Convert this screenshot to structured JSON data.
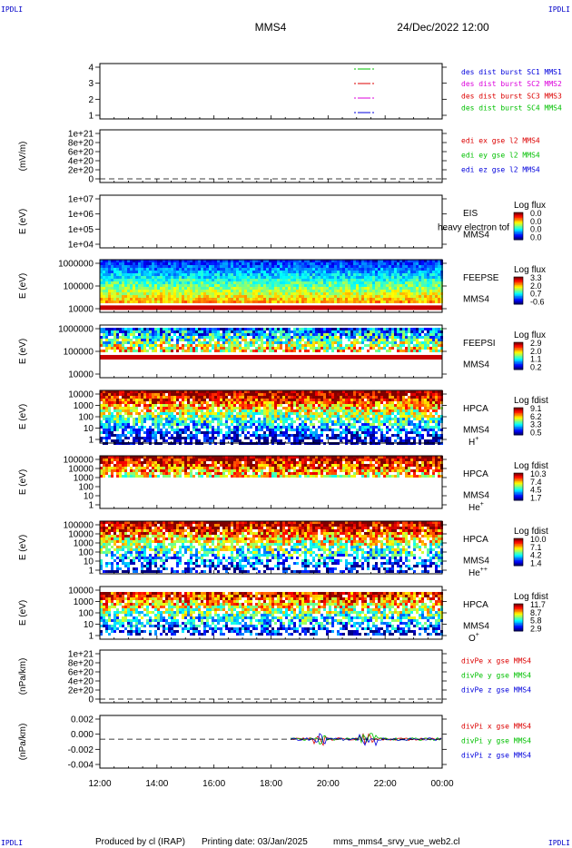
{
  "header": {
    "corner_label": "IPDLI",
    "spacecraft": "MMS4",
    "datetime": "24/Dec/2022 12:00"
  },
  "footer": {
    "produced_by": "Produced by cl (IRAP)",
    "printing_date": "Printing date: 03/Jan/2025",
    "script_name": "mms_mms4_srvy_vue_web2.cl"
  },
  "colors": {
    "blue": "#0000dc",
    "green": "#00c000",
    "red": "#dc0000",
    "magenta": "#dc00dc"
  },
  "chart_data": {
    "type": "heatmap",
    "x_ticks": [
      "12:00",
      "14:00",
      "16:00",
      "18:00",
      "20:00",
      "22:00",
      "00:00"
    ],
    "panels": [
      {
        "id": "burst",
        "kind": "lines",
        "ylabel": "",
        "yticks": [
          "4",
          "3",
          "2",
          "1"
        ],
        "legend": [
          {
            "text": "des dist burst SC1 MMS1",
            "color": "#0000dc"
          },
          {
            "text": "des dist burst SC2 MMS2",
            "color": "#dc00dc"
          },
          {
            "text": "des dist burst SC3 MMS3",
            "color": "#dc0000"
          },
          {
            "text": "des dist burst SC4 MMS4",
            "color": "#00c000"
          }
        ]
      },
      {
        "id": "edi",
        "kind": "lines",
        "ylabel": "(mV/m)",
        "yticks": [
          "1e+21",
          "8e+20",
          "6e+20",
          "4e+20",
          "2e+20",
          "0"
        ],
        "legend": [
          {
            "text": "edi ex gse l2 MMS4",
            "color": "#dc0000"
          },
          {
            "text": "edi ey gse l2 MMS4",
            "color": "#00c000"
          },
          {
            "text": "edi ez gse l2 MMS4",
            "color": "#0000dc"
          }
        ]
      },
      {
        "id": "eis",
        "kind": "spectro",
        "ylabel": "E (eV)",
        "yticks": [
          "1e+07",
          "1e+06",
          "1e+05",
          "1e+04"
        ],
        "side": [
          "EIS",
          "MMS4"
        ],
        "extra": "heavy electron tof",
        "cb_title": "Log flux",
        "cb_ticks": [
          "0.0",
          "0.0",
          "0.0",
          "0.0"
        ]
      },
      {
        "id": "feepse",
        "kind": "spectro",
        "ylabel": "E (eV)",
        "yticks": [
          "1000000",
          "100000",
          "10000"
        ],
        "side": [
          "FEEPSE",
          "MMS4"
        ],
        "cb_title": "Log flux",
        "cb_ticks": [
          "3.3",
          "2.0",
          "0.7",
          "-0.6"
        ]
      },
      {
        "id": "feepsi",
        "kind": "spectro",
        "ylabel": "E (eV)",
        "yticks": [
          "1000000",
          "100000",
          "10000"
        ],
        "side": [
          "FEEPSI",
          "MMS4"
        ],
        "cb_title": "Log flux",
        "cb_ticks": [
          "2.9",
          "2.0",
          "1.1",
          "0.2"
        ]
      },
      {
        "id": "hpca_h",
        "kind": "spectro",
        "ylabel": "E (eV)",
        "yticks": [
          "10000",
          "1000",
          "100",
          "10",
          "1"
        ],
        "side": [
          "HPCA",
          "MMS4",
          "H+"
        ],
        "cb_title": "Log fdist",
        "cb_ticks": [
          "9.1",
          "6.2",
          "3.3",
          "0.5"
        ]
      },
      {
        "id": "hpca_he",
        "kind": "spectro",
        "ylabel": "E (eV)",
        "yticks": [
          "100000",
          "10000",
          "1000",
          "100",
          "10",
          "1"
        ],
        "side": [
          "HPCA",
          "MMS4",
          "He+"
        ],
        "cb_title": "Log fdist",
        "cb_ticks": [
          "10.3",
          "7.4",
          "4.5",
          "1.7"
        ]
      },
      {
        "id": "hpca_hepp",
        "kind": "spectro",
        "ylabel": "E (eV)",
        "yticks": [
          "100000",
          "10000",
          "1000",
          "100",
          "10",
          "1"
        ],
        "side": [
          "HPCA",
          "MMS4",
          "He++"
        ],
        "cb_title": "Log fdist",
        "cb_ticks": [
          "10.0",
          "7.1",
          "4.2",
          "1.4"
        ]
      },
      {
        "id": "hpca_o",
        "kind": "spectro",
        "ylabel": "E (eV)",
        "yticks": [
          "10000",
          "1000",
          "100",
          "10",
          "1"
        ],
        "side": [
          "HPCA",
          "MMS4",
          "O+"
        ],
        "cb_title": "Log fdist",
        "cb_ticks": [
          "11.7",
          "8.7",
          "5.8",
          "2.9"
        ]
      },
      {
        "id": "divpe",
        "kind": "lines",
        "ylabel": "(nPa/km)",
        "yticks": [
          "1e+21",
          "8e+20",
          "6e+20",
          "4e+20",
          "2e+20",
          "0"
        ],
        "legend": [
          {
            "text": "divPe x gse MMS4",
            "color": "#dc0000"
          },
          {
            "text": "divPe y gse MMS4",
            "color": "#00c000"
          },
          {
            "text": "divPe z gse MMS4",
            "color": "#0000dc"
          }
        ]
      },
      {
        "id": "divpi",
        "kind": "lines",
        "ylabel": "(nPa/km)",
        "yticks": [
          "0.002",
          "0.000",
          "-0.002",
          "-0.004"
        ],
        "legend": [
          {
            "text": "divPi x gse MMS4",
            "color": "#dc0000"
          },
          {
            "text": "divPi y gse MMS4",
            "color": "#00c000"
          },
          {
            "text": "divPi z gse MMS4",
            "color": "#0000dc"
          }
        ]
      }
    ]
  }
}
